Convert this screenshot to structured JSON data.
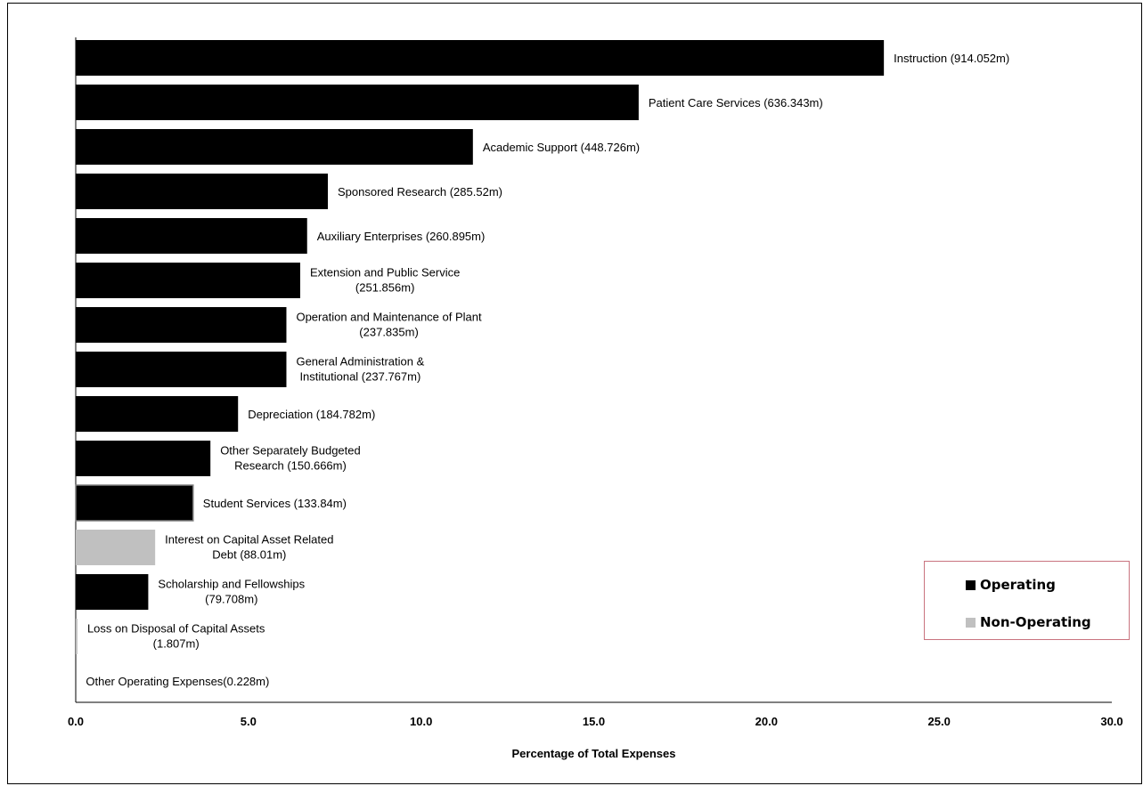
{
  "chart_data": {
    "type": "bar",
    "orientation": "horizontal",
    "title": "",
    "xlabel": "Percentage of Total Expenses",
    "ylabel": "",
    "xlim": [
      0,
      30
    ],
    "xticks": [
      "0.0",
      "5.0",
      "10.0",
      "15.0",
      "20.0",
      "25.0",
      "30.0"
    ],
    "grid": false,
    "legend_position": "bottom-right",
    "categories": [
      {
        "label": [
          "Instruction (914.052m)"
        ],
        "value": 23.4,
        "group": "Operating"
      },
      {
        "label": [
          "Patient Care Services (636.343m)"
        ],
        "value": 16.3,
        "group": "Operating"
      },
      {
        "label": [
          "Academic Support (448.726m)"
        ],
        "value": 11.5,
        "group": "Operating"
      },
      {
        "label": [
          "Sponsored Research (285.52m)"
        ],
        "value": 7.3,
        "group": "Operating"
      },
      {
        "label": [
          "Auxiliary Enterprises (260.895m)"
        ],
        "value": 6.7,
        "group": "Operating"
      },
      {
        "label": [
          "Extension and Public Service",
          "(251.856m)"
        ],
        "value": 6.5,
        "group": "Operating"
      },
      {
        "label": [
          "Operation and Maintenance of Plant",
          "(237.835m)"
        ],
        "value": 6.1,
        "group": "Operating"
      },
      {
        "label": [
          "General Administration &",
          "Institutional (237.767m)"
        ],
        "value": 6.1,
        "group": "Operating"
      },
      {
        "label": [
          "Depreciation (184.782m)"
        ],
        "value": 4.7,
        "group": "Operating"
      },
      {
        "label": [
          "Other Separately Budgeted",
          "Research (150.666m)"
        ],
        "value": 3.9,
        "group": "Operating"
      },
      {
        "label": [
          "Student Services (133.84m)"
        ],
        "value": 3.4,
        "group": "Operating"
      },
      {
        "label": [
          "Interest on Capital Asset Related",
          "Debt (88.01m)"
        ],
        "value": 2.3,
        "group": "Non-Operating"
      },
      {
        "label": [
          "Scholarship and Fellowships",
          "(79.708m)"
        ],
        "value": 2.1,
        "group": "Operating"
      },
      {
        "label": [
          "Loss on Disposal of Capital Assets",
          "(1.807m)"
        ],
        "value": 0.05,
        "group": "Non-Operating"
      },
      {
        "label": [
          "Other Operating Expenses(0.228m)"
        ],
        "value": 0.01,
        "group": "Operating"
      }
    ],
    "legend": [
      {
        "name": "Operating",
        "color": "#000000"
      },
      {
        "name": "Non-Operating",
        "color": "#c0c0c0"
      }
    ]
  }
}
